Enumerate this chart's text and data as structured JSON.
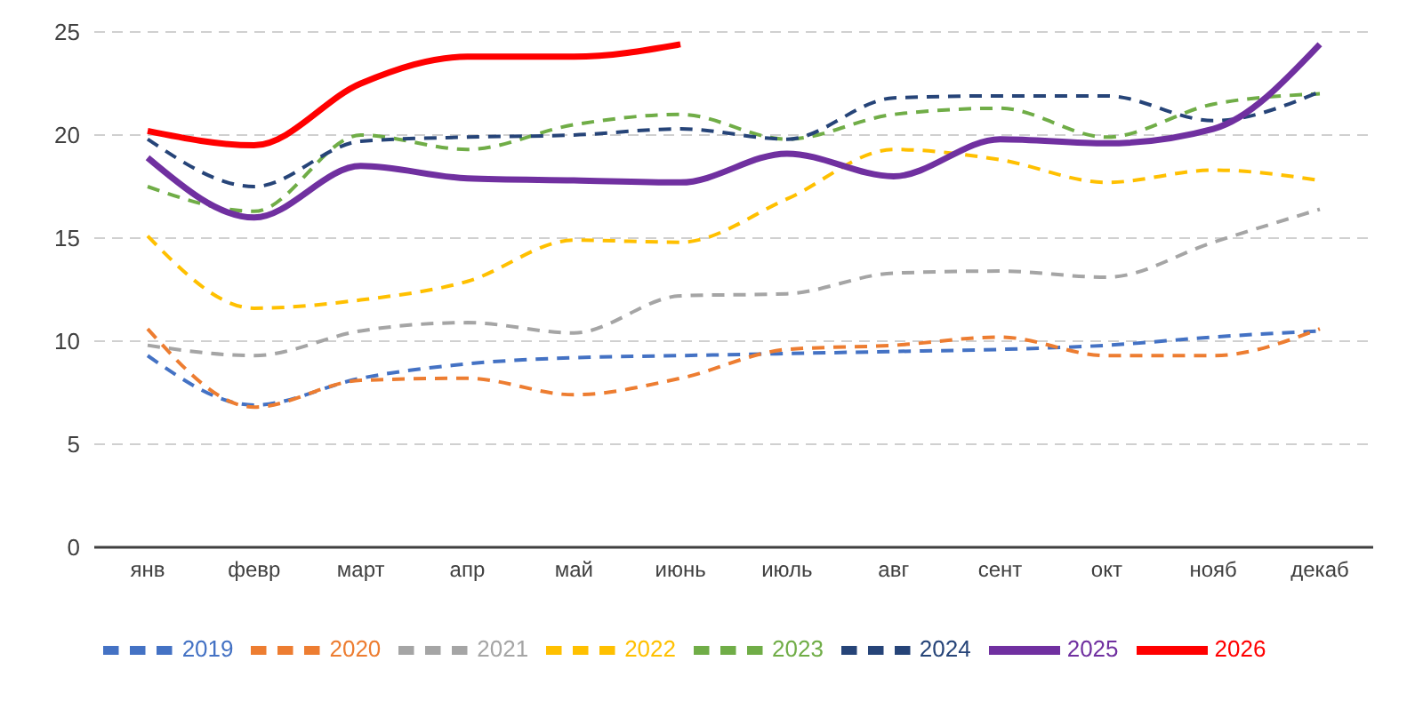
{
  "chart_data": {
    "type": "line",
    "categories": [
      "янв",
      "февр",
      "март",
      "апр",
      "май",
      "июнь",
      "июль",
      "авг",
      "сент",
      "окт",
      "нояб",
      "декаб"
    ],
    "ylim": [
      0,
      25
    ],
    "yticks": [
      0,
      5,
      10,
      15,
      20,
      25
    ],
    "grid": "y",
    "legend": "bottom",
    "marker": "none",
    "series": [
      {
        "name": "2019",
        "color": "#4472c4",
        "line_style": "dashed",
        "values": [
          9.3,
          6.9,
          8.2,
          8.9,
          9.2,
          9.3,
          9.4,
          9.5,
          9.6,
          9.8,
          10.2,
          10.5
        ]
      },
      {
        "name": "2020",
        "color": "#ed7d31",
        "line_style": "dashed",
        "values": [
          10.6,
          6.8,
          8.1,
          8.2,
          7.4,
          8.2,
          9.6,
          9.8,
          10.2,
          9.3,
          9.3,
          10.6
        ]
      },
      {
        "name": "2021",
        "color": "#a5a5a5",
        "line_style": "dashed",
        "values": [
          9.8,
          9.3,
          10.5,
          10.9,
          10.4,
          12.2,
          12.3,
          13.3,
          13.4,
          13.1,
          14.8,
          16.4
        ]
      },
      {
        "name": "2022",
        "color": "#ffc000",
        "line_style": "dashed",
        "values": [
          15.1,
          11.6,
          12.0,
          12.9,
          14.9,
          14.8,
          16.9,
          19.3,
          18.8,
          17.7,
          18.3,
          17.8
        ]
      },
      {
        "name": "2023",
        "color": "#70ad47",
        "line_style": "dashed",
        "values": [
          17.5,
          16.3,
          20.0,
          19.3,
          20.5,
          21.0,
          19.8,
          21.0,
          21.3,
          19.9,
          21.5,
          22.0
        ]
      },
      {
        "name": "2024",
        "color": "#264478",
        "line_style": "dashed",
        "values": [
          19.8,
          17.5,
          19.7,
          19.9,
          20.0,
          20.3,
          19.8,
          21.8,
          21.9,
          21.9,
          20.7,
          22.1
        ]
      },
      {
        "name": "2025",
        "color": "#7030a0",
        "line_style": "solid",
        "values": [
          18.9,
          16.0,
          18.5,
          17.9,
          17.8,
          17.7,
          19.1,
          18.0,
          19.8,
          19.6,
          20.3,
          24.4
        ]
      },
      {
        "name": "2026",
        "color": "#ff0000",
        "line_style": "solid",
        "values": [
          20.2,
          19.5,
          22.5,
          23.8,
          23.8,
          24.4,
          null,
          null,
          null,
          null,
          null,
          null
        ]
      }
    ]
  }
}
